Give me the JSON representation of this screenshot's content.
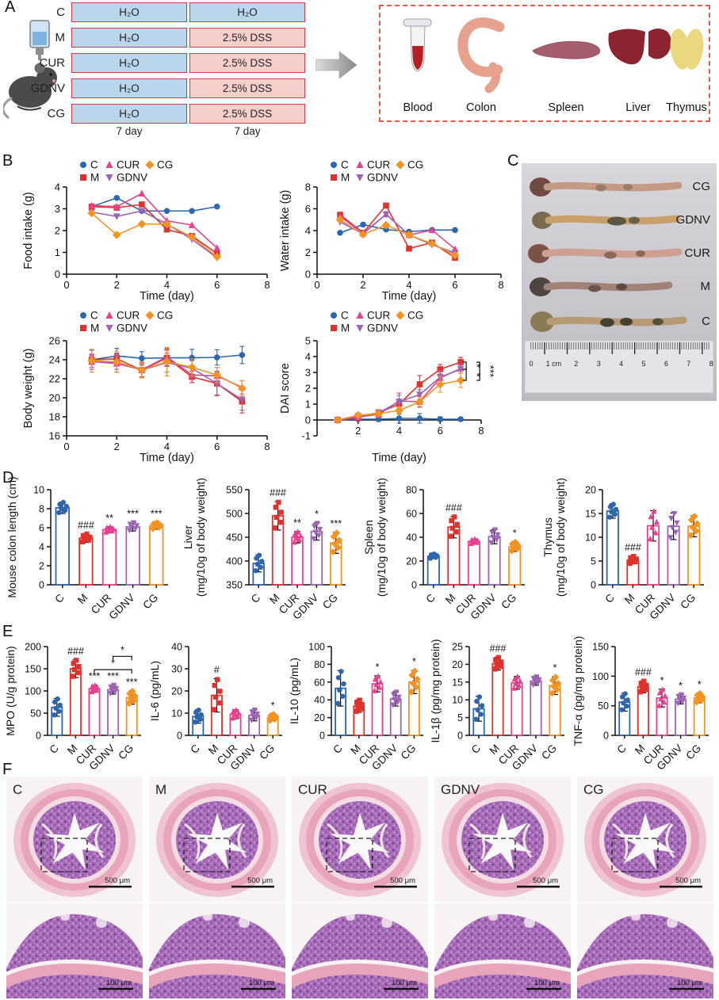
{
  "panels": {
    "a": "A",
    "b": "B",
    "c": "C",
    "d": "D",
    "e": "E",
    "f": "F"
  },
  "colors": {
    "C": "#2b66ae",
    "M": "#e0322d",
    "CUR": "#e8418f",
    "GDNV": "#9b64b4",
    "CG": "#f29322",
    "water_fill": "#b9d6ed",
    "dss_fill": "#f6cfca",
    "bar_border": "#cd3a4a",
    "dash_box": "#e4584a"
  },
  "groups": {
    "names": [
      "C",
      "M",
      "CUR",
      "GDNV",
      "CG"
    ],
    "colors": [
      "#2b66ae",
      "#e0322d",
      "#e8418f",
      "#9b64b4",
      "#f29322"
    ],
    "markers": [
      "circle",
      "square",
      "triangle",
      "triangle-down",
      "diamond"
    ]
  },
  "design": {
    "groups": [
      {
        "label": "C",
        "phase1": "H₂O",
        "phase2": "H₂O"
      },
      {
        "label": "M",
        "phase1": "H₂O",
        "phase2": "2.5% DSS"
      },
      {
        "label": "CUR",
        "phase1": "H₂O",
        "phase2": "2.5% DSS"
      },
      {
        "label": "GDNV",
        "phase1": "H₂O",
        "phase2": "2.5% DSS"
      },
      {
        "label": "CG",
        "phase1": "H₂O",
        "phase2": "2.5% DSS"
      }
    ],
    "phase1_duration": "7 day",
    "phase2_duration": "7 day",
    "organs": [
      "Blood",
      "Colon",
      "Spleen",
      "Liver",
      "Thymus"
    ]
  },
  "photo": {
    "labels": [
      "CG",
      "GDNV",
      "CUR",
      "M",
      "C"
    ],
    "ruler": [
      "0",
      "1 cm",
      "2",
      "3",
      "4",
      "5",
      "6",
      "7",
      "8"
    ]
  },
  "histology": {
    "labels": [
      "C",
      "M",
      "CUR",
      "GDNV",
      "CG"
    ],
    "scale_large": "500 μm",
    "scale_small": "100 μm"
  },
  "chart_data": [
    {
      "id": "food_intake",
      "type": "line",
      "xlabel": "Time (day)",
      "ylabel": "Food intake (g)",
      "xlim": [
        0,
        8
      ],
      "xticks": [
        0,
        2,
        4,
        6,
        8
      ],
      "ylim": [
        0,
        4
      ],
      "yticks": [
        0,
        1,
        2,
        3,
        4
      ],
      "x": [
        1,
        2,
        3,
        4,
        5,
        6
      ],
      "legend_rows": [
        [
          "C",
          "CUR",
          "CG"
        ],
        [
          "M",
          "GDNV"
        ]
      ],
      "margins": {
        "l": 58,
        "r": 16,
        "t": 40,
        "b": 38
      },
      "series": [
        {
          "name": "C",
          "values": [
            3.1,
            3.5,
            2.9,
            2.9,
            2.9,
            3.1
          ]
        },
        {
          "name": "M",
          "values": [
            3.1,
            3.05,
            3.2,
            2.05,
            1.75,
            0.95
          ]
        },
        {
          "name": "CUR",
          "values": [
            3.15,
            3.1,
            3.7,
            2.45,
            2.25,
            1.2
          ]
        },
        {
          "name": "GDNV",
          "values": [
            2.85,
            2.65,
            2.9,
            2.3,
            1.6,
            0.75
          ]
        },
        {
          "name": "CG",
          "values": [
            2.8,
            1.8,
            2.3,
            2.3,
            1.7,
            0.8
          ]
        }
      ]
    },
    {
      "id": "water_intake",
      "type": "line",
      "xlabel": "Time (day)",
      "ylabel": "Water intake (g)",
      "xlim": [
        0,
        8
      ],
      "xticks": [
        0,
        2,
        4,
        6,
        8
      ],
      "ylim": [
        0,
        8
      ],
      "yticks": [
        0,
        2,
        4,
        6,
        8
      ],
      "x": [
        1,
        2,
        3,
        4,
        5,
        6
      ],
      "legend_rows": [
        [
          "C",
          "CUR",
          "CG"
        ],
        [
          "M",
          "GDNV"
        ]
      ],
      "margins": {
        "l": 50,
        "r": 16,
        "t": 40,
        "b": 38
      },
      "series": [
        {
          "name": "C",
          "values": [
            3.8,
            4.55,
            4.1,
            3.9,
            4.05,
            4.05
          ]
        },
        {
          "name": "M",
          "values": [
            5.45,
            3.8,
            6.3,
            2.35,
            2.9,
            1.5
          ]
        },
        {
          "name": "CUR",
          "values": [
            5.3,
            3.75,
            5.5,
            3.6,
            4.05,
            2.3
          ]
        },
        {
          "name": "GDNV",
          "values": [
            4.8,
            3.7,
            5.5,
            3.6,
            2.7,
            1.95
          ]
        },
        {
          "name": "CG",
          "values": [
            5.0,
            3.65,
            4.5,
            3.6,
            2.8,
            1.75
          ]
        }
      ]
    },
    {
      "id": "body_weight",
      "type": "line",
      "xlabel": "Time (day)",
      "ylabel": "Body weight (g)",
      "xlim": [
        0,
        8
      ],
      "xticks": [
        0,
        2,
        4,
        6,
        8
      ],
      "ylim": [
        16,
        26
      ],
      "yticks": [
        16,
        18,
        20,
        22,
        24,
        26
      ],
      "x": [
        1,
        2,
        3,
        4,
        5,
        6,
        7
      ],
      "legend_rows": [
        [
          "C",
          "CUR",
          "CG"
        ],
        [
          "M",
          "GDNV"
        ]
      ],
      "margins": {
        "l": 58,
        "r": 16,
        "t": 44,
        "b": 38
      },
      "series": [
        {
          "name": "C",
          "values": [
            24.0,
            24.4,
            24.15,
            24.2,
            24.2,
            24.25,
            24.5
          ],
          "err": [
            1.0,
            0.8,
            0.7,
            0.9,
            0.9,
            0.8,
            0.9
          ]
        },
        {
          "name": "M",
          "values": [
            24.0,
            24.1,
            22.9,
            24.2,
            22.2,
            21.5,
            19.6
          ],
          "err": [
            0.5,
            0.6,
            0.7,
            0.8,
            0.6,
            1.2,
            1.2
          ]
        },
        {
          "name": "CUR",
          "values": [
            23.8,
            23.6,
            22.95,
            24.3,
            22.4,
            22.3,
            21.1
          ],
          "err": [
            0.8,
            0.9,
            0.8,
            0.9,
            0.8,
            0.9,
            0.7
          ]
        },
        {
          "name": "GDNV",
          "values": [
            23.8,
            23.7,
            22.9,
            23.7,
            23.1,
            21.5,
            19.8
          ],
          "err": [
            0.6,
            0.7,
            0.8,
            1.0,
            0.8,
            1.3,
            1.1
          ]
        },
        {
          "name": "CG",
          "values": [
            23.9,
            23.8,
            22.9,
            23.8,
            23.2,
            22.4,
            21.0
          ],
          "err": [
            1.2,
            1.1,
            0.8,
            1.5,
            0.9,
            0.8,
            0.8
          ]
        }
      ]
    },
    {
      "id": "dai_score",
      "type": "line",
      "xlabel": "Time (day)",
      "ylabel": "DAI score",
      "xlim": [
        0,
        8
      ],
      "xticks": [
        2,
        4,
        6,
        8
      ],
      "ylim": [
        -1,
        5
      ],
      "yticks": [
        -1,
        0,
        1,
        2,
        3,
        4,
        5
      ],
      "xaxis0": 0,
      "x": [
        1,
        2,
        3,
        4,
        5,
        6,
        7
      ],
      "legend_rows": [
        [
          "C",
          "CUR",
          "CG"
        ],
        [
          "M",
          "GDNV"
        ]
      ],
      "margins": {
        "l": 50,
        "r": 48,
        "t": 44,
        "b": 38
      },
      "right_brackets": [
        {
          "y1": 3.65,
          "y2": 3.2,
          "dx": 7,
          "label": "*"
        },
        {
          "y1": 3.2,
          "y2": 2.5,
          "dx": 7,
          "label": "*"
        },
        {
          "y1": 3.65,
          "y2": 2.5,
          "dx": 24,
          "label": "***"
        }
      ],
      "series": [
        {
          "name": "C",
          "values": [
            0,
            0.05,
            0.05,
            0.1,
            0.1,
            0.05,
            0.05
          ],
          "err": [
            0,
            0.1,
            0.15,
            0.3,
            0.3,
            0.15,
            0.1
          ]
        },
        {
          "name": "M",
          "values": [
            0,
            0.15,
            0.45,
            1.0,
            2.25,
            3.2,
            3.65
          ],
          "err": [
            0,
            0.2,
            0.15,
            0.3,
            0.55,
            0.3,
            0.3
          ]
        },
        {
          "name": "CUR",
          "values": [
            0,
            0.2,
            0.35,
            1.2,
            1.15,
            2.65,
            3.25
          ],
          "err": [
            0,
            0.2,
            0.2,
            0.5,
            0.35,
            0.45,
            0.3
          ]
        },
        {
          "name": "GDNV",
          "values": [
            0,
            0.25,
            0.45,
            1.15,
            1.6,
            2.7,
            3.2
          ],
          "err": [
            0,
            0.15,
            0.2,
            0.4,
            0.3,
            0.35,
            0.25
          ]
        },
        {
          "name": "CG",
          "values": [
            0,
            0.3,
            0.4,
            0.6,
            1.15,
            2.25,
            2.5
          ],
          "err": [
            0,
            0.1,
            0.15,
            0.25,
            0.3,
            0.5,
            0.45
          ]
        }
      ]
    },
    {
      "id": "colon_length",
      "type": "bar",
      "ylabel_lines": [
        "Mouse colon length (cm)"
      ],
      "categories": [
        "C",
        "M",
        "CUR",
        "GDNV",
        "CG"
      ],
      "values": [
        8.1,
        4.9,
        5.8,
        6.1,
        6.2
      ],
      "err": [
        0.6,
        0.45,
        0.3,
        0.45,
        0.35
      ],
      "sig": [
        "",
        "###",
        "**",
        "***",
        "***"
      ],
      "ylim": [
        0,
        10
      ],
      "yticks": [
        0,
        2,
        4,
        6,
        8,
        10
      ],
      "margins": {
        "l": 58,
        "r": 14,
        "t": 20,
        "b": 52
      }
    },
    {
      "id": "liver",
      "type": "bar",
      "ylabel_lines": [
        "Liver",
        "(mg/10g of body weight)"
      ],
      "categories": [
        "C",
        "M",
        "CUR",
        "GDNV",
        "CG"
      ],
      "values": [
        395,
        495,
        450,
        462,
        438
      ],
      "err": [
        18,
        30,
        12,
        18,
        22
      ],
      "sig": [
        "",
        "###",
        "**",
        "*",
        "***"
      ],
      "ylim": [
        350,
        550
      ],
      "yticks": [
        350,
        400,
        450,
        500,
        550
      ],
      "margins": {
        "l": 86,
        "r": 12,
        "t": 20,
        "b": 52
      }
    },
    {
      "id": "spleen",
      "type": "bar",
      "ylabel_lines": [
        "Spleen",
        "(mg/10g of body weight)"
      ],
      "categories": [
        "C",
        "M",
        "CUR",
        "GDNV",
        "CG"
      ],
      "values": [
        24,
        48.5,
        36.5,
        40.5,
        32
      ],
      "err": [
        2,
        9,
        2,
        6,
        4
      ],
      "sig": [
        "",
        "###",
        "",
        "",
        "*"
      ],
      "ylim": [
        0,
        80
      ],
      "yticks": [
        0,
        20,
        40,
        60,
        80
      ],
      "margins": {
        "l": 78,
        "r": 14,
        "t": 20,
        "b": 52
      }
    },
    {
      "id": "thymus",
      "type": "bar",
      "ylabel_lines": [
        "Thymus",
        "(mg/10g of body weight)"
      ],
      "categories": [
        "C",
        "M",
        "CUR",
        "GDNV",
        "CG"
      ],
      "values": [
        15.5,
        5.2,
        12.4,
        12.3,
        12.3
      ],
      "err": [
        1.5,
        0.8,
        3.2,
        2.8,
        2.2
      ],
      "sig": [
        "",
        "###",
        "",
        "",
        ""
      ],
      "ylim": [
        0,
        20
      ],
      "yticks": [
        0,
        5,
        10,
        15,
        20
      ],
      "margins": {
        "l": 78,
        "r": 14,
        "t": 20,
        "b": 52
      }
    },
    {
      "id": "mpo",
      "type": "bar",
      "ylabel_lines": [
        "MPO (U/g protein)"
      ],
      "categories": [
        "C",
        "M",
        "CUR",
        "GDNV",
        "CG"
      ],
      "values": [
        63,
        150,
        105,
        103,
        85
      ],
      "err": [
        20,
        20,
        8,
        10,
        15
      ],
      "sig": [
        "",
        "###",
        "***",
        "***",
        "***"
      ],
      "brackets": [
        {
          "from": 2,
          "to": 4,
          "y": 148,
          "label": "*"
        },
        {
          "from": 3,
          "to": 4,
          "y": 178,
          "label": "*"
        }
      ],
      "ylim": [
        0,
        200
      ],
      "yticks": [
        0,
        50,
        100,
        150,
        200
      ],
      "margins": {
        "l": 56,
        "r": 10,
        "t": 22,
        "b": 46
      }
    },
    {
      "id": "il6",
      "type": "bar",
      "ylabel_lines": [
        "IL-6 (pg/mL)"
      ],
      "categories": [
        "C",
        "M",
        "CUR",
        "GDNV",
        "CG"
      ],
      "values": [
        8.5,
        18,
        9.5,
        9,
        8
      ],
      "err": [
        3,
        7.5,
        2,
        2.5,
        1.5
      ],
      "sig": [
        "",
        "#",
        "",
        "",
        "*"
      ],
      "ylim": [
        0,
        40
      ],
      "yticks": [
        0,
        10,
        20,
        30,
        40
      ],
      "margins": {
        "l": 52,
        "r": 10,
        "t": 22,
        "b": 46
      }
    },
    {
      "id": "il10",
      "type": "bar",
      "ylabel_lines": [
        "IL-10 (pg/mL)"
      ],
      "categories": [
        "C",
        "M",
        "CUR",
        "GDNV",
        "CG"
      ],
      "values": [
        53,
        33,
        58,
        41,
        60
      ],
      "err": [
        20,
        7,
        9,
        8,
        13
      ],
      "sig": [
        "",
        "",
        "*",
        "",
        "*"
      ],
      "ylim": [
        0,
        100
      ],
      "yticks": [
        0,
        20,
        40,
        60,
        80,
        100
      ],
      "margins": {
        "l": 56,
        "r": 10,
        "t": 22,
        "b": 46
      }
    },
    {
      "id": "il1b",
      "type": "bar",
      "ylabel_lines": [
        "IL-1β (pg/mg protein)"
      ],
      "categories": [
        "C",
        "M",
        "CUR",
        "GDNV",
        "CG"
      ],
      "values": [
        7.5,
        20.2,
        14.8,
        15.3,
        14
      ],
      "err": [
        3.5,
        1.8,
        1.8,
        1.2,
        2.5
      ],
      "sig": [
        "",
        "###",
        "",
        "",
        "*"
      ],
      "ylim": [
        0,
        25
      ],
      "yticks": [
        0,
        5,
        10,
        15,
        20,
        25
      ],
      "margins": {
        "l": 52,
        "r": 10,
        "t": 22,
        "b": 46
      }
    },
    {
      "id": "tnfa",
      "type": "bar",
      "ylabel_lines": [
        "TNF-α (pg/mg protein)"
      ],
      "categories": [
        "C",
        "M",
        "CUR",
        "GDNV",
        "CG"
      ],
      "values": [
        56,
        82,
        63,
        61,
        63
      ],
      "err": [
        15,
        10,
        15,
        8,
        8
      ],
      "sig": [
        "",
        "###",
        "*",
        "*",
        "*"
      ],
      "ylim": [
        0,
        150
      ],
      "yticks": [
        0,
        50,
        100,
        150
      ],
      "margins": {
        "l": 56,
        "r": 10,
        "t": 22,
        "b": 46
      }
    }
  ]
}
